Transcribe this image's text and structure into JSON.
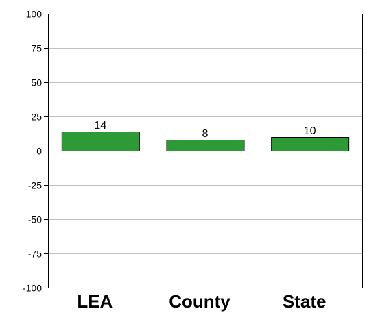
{
  "chart_data": {
    "type": "bar",
    "categories": [
      "LEA",
      "County",
      "State"
    ],
    "values": [
      14,
      8,
      10
    ],
    "data_labels": [
      "14",
      "8",
      "10"
    ],
    "title": "",
    "xlabel": "",
    "ylabel": "",
    "ylim": [
      -100,
      100
    ],
    "yticks": [
      100,
      75,
      50,
      25,
      0,
      -25,
      -50,
      -75,
      -100
    ],
    "ytick_labels": [
      "100",
      "75",
      "50",
      "25",
      "0",
      "-25",
      "-50",
      "-75",
      "-100"
    ],
    "grid": true,
    "legend": "none",
    "colors": {
      "bar_fill": "#2e9a35",
      "bar_stroke": "#000000",
      "grid": "#c0c0c0",
      "axis": "#000000",
      "background": "#ffffff"
    }
  }
}
